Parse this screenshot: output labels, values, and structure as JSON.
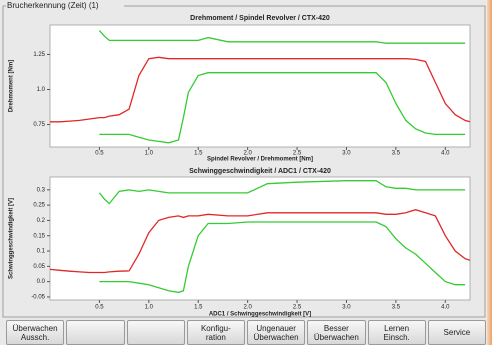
{
  "panel_title": "Brucherkennung (Zeit) (1)",
  "chart_data": [
    {
      "type": "line",
      "title": "Drehmoment / Spindel Revolver / CTX-420",
      "x_label": "Spindel Revolver / Drehmoment [Nm]",
      "y_label": "Drehmoment [Nm]",
      "x": [
        0,
        0.1,
        0.2,
        0.3,
        0.4,
        0.5,
        0.55,
        0.6,
        0.7,
        0.8,
        0.9,
        1.0,
        1.1,
        1.2,
        1.3,
        1.35,
        1.4,
        1.5,
        1.6,
        1.8,
        2.0,
        2.2,
        2.5,
        3.0,
        3.3,
        3.4,
        3.5,
        3.6,
        3.7,
        3.8,
        3.9,
        4.0,
        4.1,
        4.2,
        4.25
      ],
      "xlim": [
        0,
        4.25
      ],
      "xticks": [
        0.5,
        {
          "value": 1,
          "label": "1.0"
        },
        1.5,
        {
          "value": 2,
          "label": "2.0"
        },
        2.5,
        {
          "value": 3,
          "label": "3.0"
        },
        3.5,
        {
          "value": 4,
          "label": "4.0"
        }
      ],
      "ylim": [
        0.59,
        1.46
      ],
      "yticks": [
        0.75,
        {
          "value": 1,
          "label": "1.0"
        },
        1.25
      ],
      "grid": false,
      "series": [
        {
          "color": "#e02828",
          "values": [
            0.77,
            0.77,
            0.775,
            0.78,
            0.79,
            0.8,
            0.8,
            0.81,
            0.82,
            0.86,
            1.1,
            1.22,
            1.23,
            1.22,
            1.22,
            1.22,
            1.22,
            1.22,
            1.22,
            1.22,
            1.22,
            1.22,
            1.22,
            1.22,
            1.22,
            1.22,
            1.22,
            1.22,
            1.215,
            1.2,
            1.05,
            0.9,
            0.82,
            0.78,
            0.77
          ]
        },
        {
          "color": "#33cc33",
          "values": [
            null,
            null,
            null,
            null,
            null,
            1.42,
            1.38,
            1.35,
            1.35,
            1.35,
            1.35,
            1.35,
            1.35,
            1.35,
            1.35,
            1.35,
            1.35,
            1.35,
            1.37,
            1.34,
            1.34,
            1.34,
            1.34,
            1.34,
            1.34,
            1.33,
            1.33,
            1.33,
            1.33,
            1.33,
            1.33,
            1.33,
            1.33,
            1.33,
            null
          ]
        },
        {
          "color": "#33cc33",
          "values": [
            null,
            null,
            null,
            null,
            null,
            0.68,
            0.68,
            0.68,
            0.68,
            0.68,
            0.66,
            0.64,
            0.63,
            0.62,
            0.64,
            0.8,
            0.98,
            1.1,
            1.12,
            1.12,
            1.12,
            1.12,
            1.12,
            1.12,
            1.12,
            1.05,
            0.9,
            0.78,
            0.72,
            0.69,
            0.68,
            0.68,
            0.68,
            0.68,
            null
          ]
        }
      ]
    },
    {
      "type": "line",
      "title": "Schwinggeschwindigkeit / ADC1 / CTX-420",
      "x_label": "ADC1 / Schwinggeschwindigkeit [V]",
      "y_label": "Schwinggeschwindigkeit [V]",
      "x": [
        0,
        0.1,
        0.2,
        0.3,
        0.4,
        0.5,
        0.55,
        0.6,
        0.7,
        0.8,
        0.9,
        1.0,
        1.1,
        1.2,
        1.3,
        1.35,
        1.4,
        1.5,
        1.6,
        1.8,
        2.0,
        2.2,
        2.5,
        3.0,
        3.3,
        3.4,
        3.5,
        3.6,
        3.7,
        3.8,
        3.9,
        4.0,
        4.1,
        4.2,
        4.25
      ],
      "xlim": [
        0,
        4.25
      ],
      "xticks": [
        0.5,
        {
          "value": 1,
          "label": "1.0"
        },
        1.5,
        {
          "value": 2,
          "label": "2.0"
        },
        2.5,
        {
          "value": 3,
          "label": "3.0"
        },
        3.5,
        {
          "value": 4,
          "label": "4.0"
        }
      ],
      "ylim": [
        -0.06,
        0.342
      ],
      "yticks": [
        -0.05,
        {
          "value": 0,
          "label": "0.0"
        },
        0.05,
        0.1,
        0.15,
        0.2,
        0.25,
        0.3
      ],
      "grid": false,
      "series": [
        {
          "color": "#e02828",
          "values": [
            0.04,
            0.037,
            0.034,
            0.032,
            0.03,
            0.03,
            0.03,
            0.032,
            0.034,
            0.035,
            0.09,
            0.16,
            0.2,
            0.21,
            0.215,
            0.21,
            0.215,
            0.215,
            0.22,
            0.215,
            0.215,
            0.225,
            0.225,
            0.225,
            0.225,
            0.22,
            0.22,
            0.225,
            0.235,
            0.225,
            0.215,
            0.15,
            0.1,
            0.075,
            0.07
          ]
        },
        {
          "color": "#33cc33",
          "values": [
            null,
            null,
            null,
            null,
            null,
            0.29,
            0.27,
            0.255,
            0.295,
            0.3,
            0.295,
            0.3,
            0.295,
            0.29,
            0.29,
            0.29,
            0.29,
            0.29,
            0.29,
            0.29,
            0.29,
            0.32,
            0.325,
            0.33,
            0.33,
            0.31,
            0.305,
            0.305,
            0.3,
            0.3,
            0.3,
            0.3,
            0.3,
            0.3,
            null
          ]
        },
        {
          "color": "#33cc33",
          "values": [
            null,
            null,
            null,
            null,
            null,
            0,
            0,
            0,
            0,
            0,
            -0.005,
            -0.01,
            -0.02,
            -0.03,
            -0.035,
            -0.03,
            0.05,
            0.15,
            0.19,
            0.19,
            0.195,
            0.195,
            0.195,
            0.195,
            0.195,
            0.18,
            0.14,
            0.11,
            0.09,
            0.06,
            0.03,
            0,
            -0.01,
            -0.01,
            null
          ]
        }
      ]
    }
  ],
  "buttons": [
    [
      "Überwachen",
      "Aussch."
    ],
    [
      "Konfigu-",
      "ration"
    ],
    [
      "Ungenauer",
      "Überwachen"
    ],
    [
      "Besser",
      "Überwachen"
    ],
    [
      "Lernen",
      "Einsch."
    ],
    [
      "Service"
    ]
  ]
}
